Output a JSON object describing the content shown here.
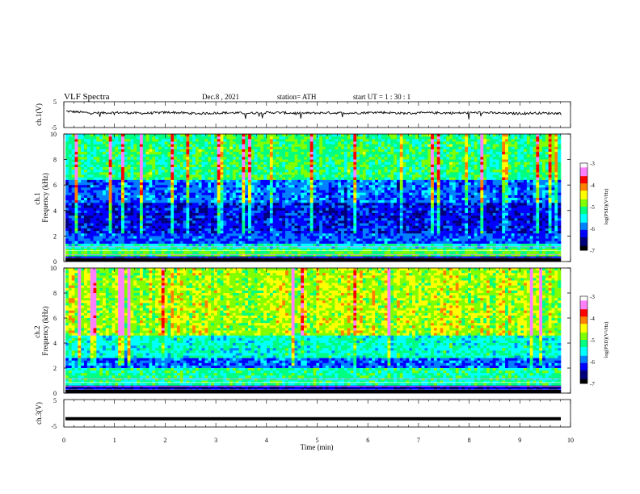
{
  "header": {
    "title": "VLF  Spectra",
    "date": "Dec.8  , 2021",
    "station": "station= ATH",
    "start_ut": "start  UT  =   1  : 30 : 1"
  },
  "chart_data": [
    {
      "type": "line",
      "panel": "ch1-waveform",
      "ylabel": "ch.1(V)",
      "ylim": [
        -5,
        5
      ],
      "yticks": [
        "5",
        "-5"
      ],
      "xlim": [
        0,
        10
      ],
      "series": [
        {
          "values": [
            1.3,
            0.6,
            0.8,
            0.5,
            0.9,
            0.4,
            0.7,
            0.6,
            0.8,
            0.5,
            0.7,
            0.6,
            0.9,
            0.5,
            0.7,
            0.6,
            0.8,
            0.4,
            0.6,
            0.5
          ]
        }
      ]
    },
    {
      "type": "heatmap",
      "panel": "ch1-spectrogram",
      "ylabel": "ch.1\nFrequency  (kHz)",
      "ylabel_lines": [
        "ch.1",
        "Frequency  (kHz)"
      ],
      "ylim": [
        0,
        10
      ],
      "yticks": [
        "0",
        "2",
        "4",
        "6",
        "8",
        "10"
      ],
      "xlim": [
        0,
        10
      ],
      "colorbar": {
        "label": "log(PSD)(V²/Hz)",
        "ticks": [
          "-3",
          "-4",
          "-5",
          "-6",
          "-7"
        ],
        "range": [
          -7,
          -3
        ]
      },
      "bands": [
        {
          "from": 0,
          "to": 0.4,
          "level": -6.8
        },
        {
          "from": 0.4,
          "to": 1.0,
          "level": -5.0
        },
        {
          "from": 1.0,
          "to": 1.4,
          "level": -5.5
        },
        {
          "from": 1.4,
          "to": 2.2,
          "level": -6.3
        },
        {
          "from": 2.2,
          "to": 4.6,
          "level": -6.6
        },
        {
          "from": 4.6,
          "to": 6.4,
          "level": -6.2
        },
        {
          "from": 6.4,
          "to": 10,
          "level": -5.2
        }
      ]
    },
    {
      "type": "heatmap",
      "panel": "ch2-spectrogram",
      "ylabel": "ch.2\nFrequency  (kHz)",
      "ylabel_lines": [
        "ch.2",
        "Frequency  (kHz)"
      ],
      "ylim": [
        0,
        10
      ],
      "yticks": [
        "0",
        "2",
        "4",
        "6",
        "8",
        "10"
      ],
      "xlim": [
        0,
        10
      ],
      "colorbar": {
        "label": "log(PSD)(V²/Hz)",
        "ticks": [
          "-3",
          "-4",
          "-5",
          "-6",
          "-7"
        ],
        "range": [
          -7,
          -3
        ]
      },
      "bands": [
        {
          "from": 0,
          "to": 0.5,
          "level": -6.8
        },
        {
          "from": 0.5,
          "to": 2.0,
          "level": -5.3
        },
        {
          "from": 2.0,
          "to": 2.8,
          "level": -6.2
        },
        {
          "from": 2.8,
          "to": 4.6,
          "level": -5.5
        },
        {
          "from": 4.6,
          "to": 10,
          "level": -4.6
        }
      ]
    },
    {
      "type": "line",
      "panel": "ch3-waveform",
      "ylabel": "ch.3(V)",
      "ylim": [
        -5,
        5
      ],
      "yticks": [
        "5",
        "-5"
      ],
      "xlim": [
        0,
        10
      ],
      "xlabel": "Time  (min)",
      "xticks": [
        "0",
        "1",
        "2",
        "3",
        "4",
        "5",
        "6",
        "7",
        "8",
        "9",
        "10"
      ],
      "series": [
        {
          "values": [
            -2,
            -2,
            -2,
            -2,
            -2,
            -2,
            -2,
            -2,
            -2,
            -2,
            -2
          ]
        }
      ]
    }
  ],
  "colors": {
    "background": "#ffffff",
    "axis": "#000000",
    "colormap": [
      "#000000",
      "#00007a",
      "#0000ff",
      "#0080ff",
      "#00ffff",
      "#00ff80",
      "#80ff00",
      "#ffff00",
      "#ff8000",
      "#ff0000",
      "#ff80ff",
      "#ffffff"
    ]
  }
}
